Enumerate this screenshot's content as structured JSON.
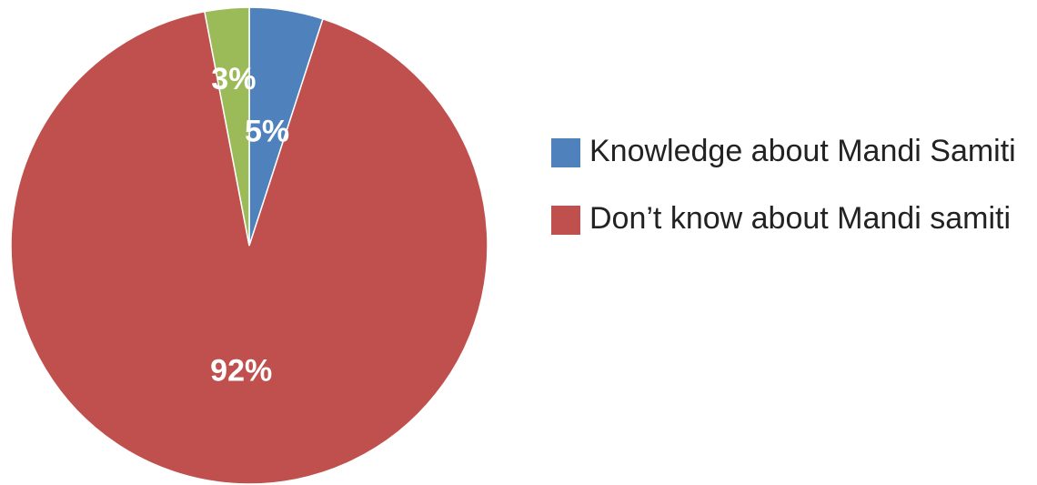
{
  "chart_data": {
    "type": "pie",
    "categories": [
      "Knowledge about Mandi Samiti",
      "Don’t know about Mandi samiti",
      null
    ],
    "values": [
      5,
      92,
      3
    ],
    "value_labels": [
      "5%",
      "92%",
      "3%"
    ],
    "colors": [
      "#4f81bd",
      "#c0504d",
      "#9bbb59"
    ],
    "legend": "right"
  }
}
